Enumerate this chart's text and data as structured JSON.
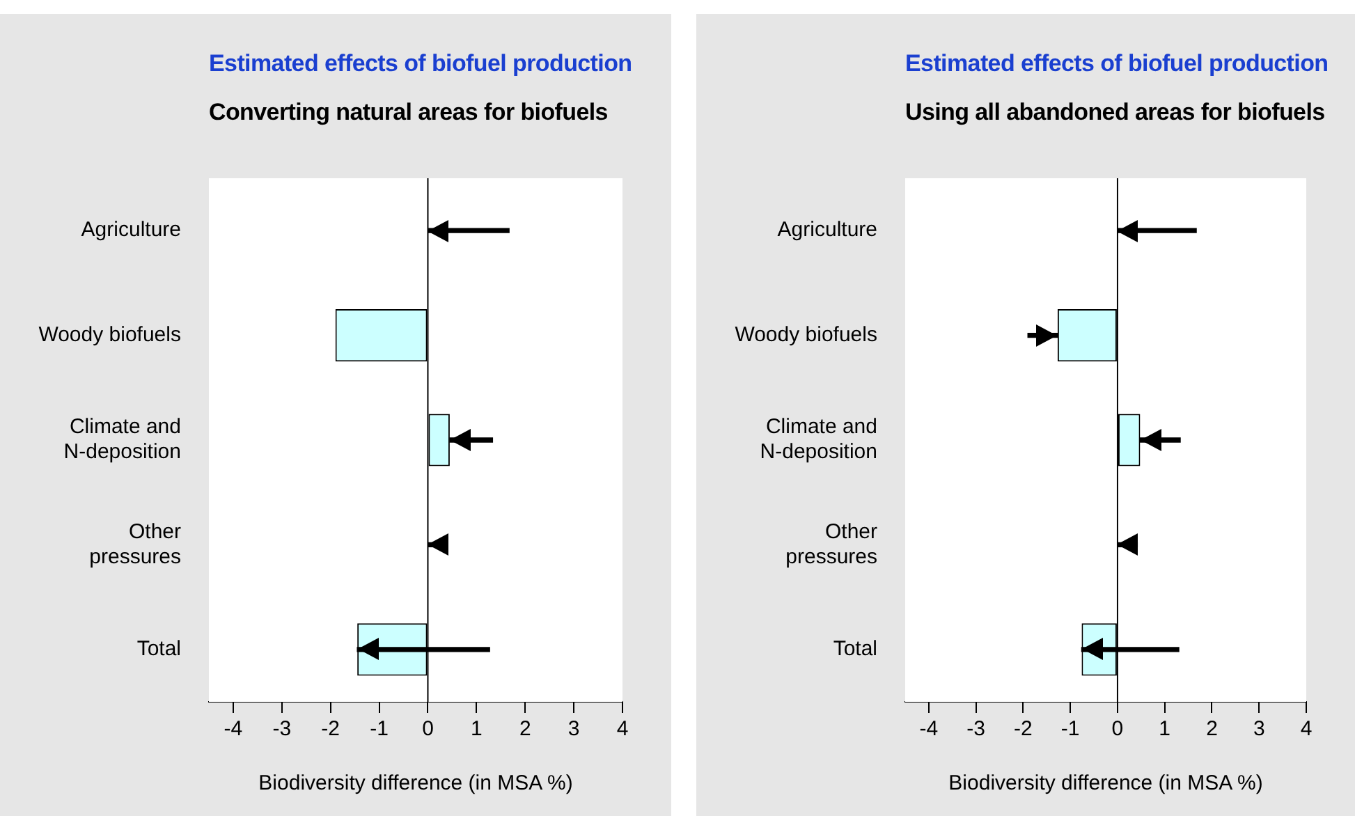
{
  "chart_data": [
    {
      "type": "bar",
      "orientation": "horizontal",
      "title": "Estimated effects of biofuel production",
      "subtitle": "Converting natural areas for biofuels",
      "xlabel": "Biodiversity difference (in MSA %)",
      "categories": [
        "Agriculture",
        "Woody biofuels",
        "Climate and\nN-deposition",
        "Other\npressures",
        "Total"
      ],
      "series": [
        {
          "color": "#ccffff",
          "values": [
            0,
            -1.9,
            0.45,
            0,
            -1.45
          ]
        },
        {
          "color": "#000000",
          "base": [
            1.67,
            null,
            1.33,
            0.4,
            1.27
          ],
          "values": [
            -1.67,
            null,
            -0.88,
            -0.4,
            -2.72
          ]
        }
      ],
      "xlim": [
        -4.5,
        4
      ],
      "xticks": [
        -4,
        -3,
        -2,
        -1,
        0,
        1,
        2,
        3,
        4
      ],
      "ref_lines": [
        {
          "axis": "x",
          "value": 0,
          "color": "#000000"
        }
      ],
      "grid": false,
      "legend": false
    },
    {
      "type": "bar",
      "orientation": "horizontal",
      "title": "Estimated effects of biofuel production",
      "subtitle": "Using all abandoned areas for biofuels",
      "xlabel": "Biodiversity difference (in MSA %)",
      "categories": [
        "Agriculture",
        "Woody biofuels",
        "Climate and\nN-deposition",
        "Other\npressures",
        "Total"
      ],
      "series": [
        {
          "color": "#ccffff",
          "values": [
            0,
            -1.27,
            0.48,
            0,
            -0.76
          ]
        },
        {
          "color": "#000000",
          "base": [
            1.67,
            -1.9,
            1.33,
            0.42,
            1.3
          ],
          "values": [
            -1.67,
            0.63,
            -0.85,
            -0.42,
            -2.06
          ]
        }
      ],
      "xlim": [
        -4.5,
        4
      ],
      "xticks": [
        -4,
        -3,
        -2,
        -1,
        0,
        1,
        2,
        3,
        4
      ],
      "ref_lines": [
        {
          "axis": "x",
          "value": 0,
          "color": "#000000"
        }
      ],
      "grid": false,
      "legend": false
    }
  ]
}
